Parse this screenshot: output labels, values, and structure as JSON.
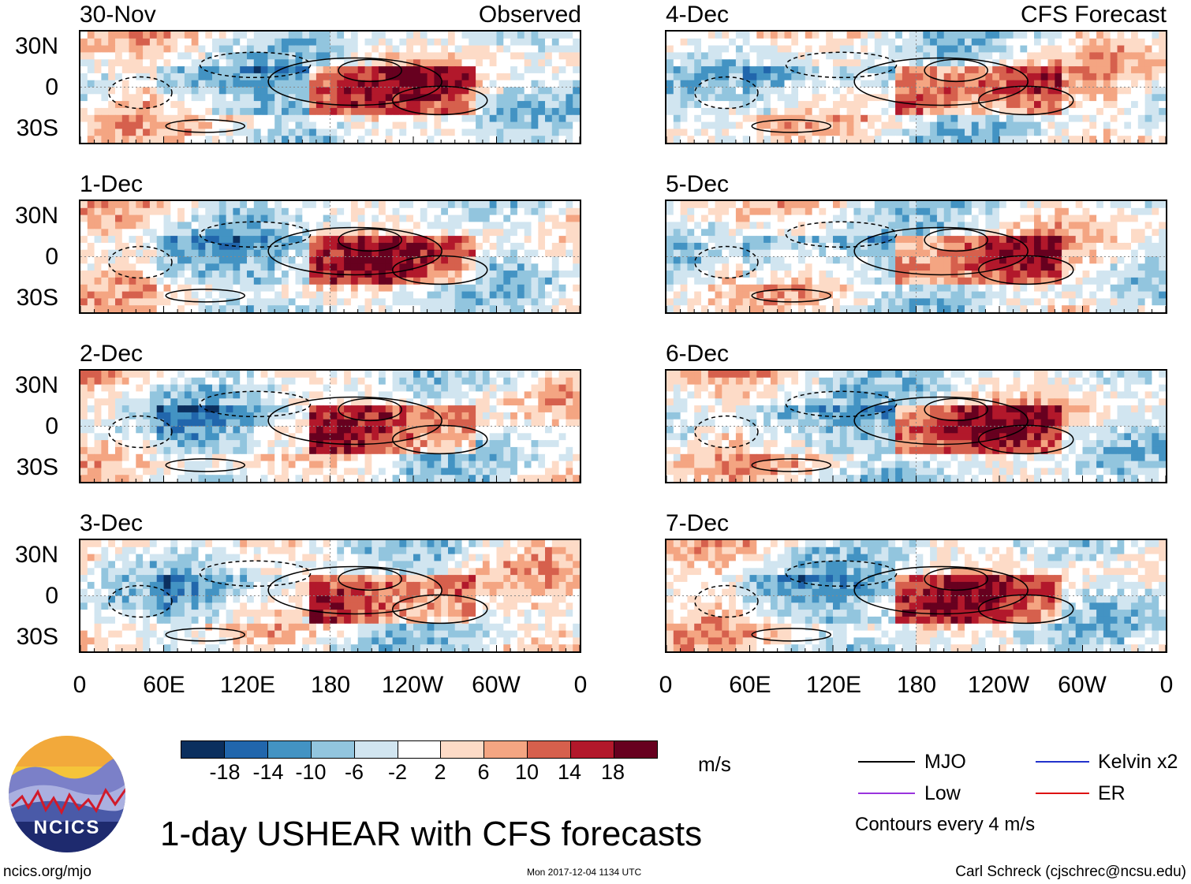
{
  "chart_data": {
    "type": "heatmap",
    "title": "1-day USHEAR with CFS forecasts",
    "units": "m/s",
    "observed_label": "Observed",
    "forecast_label": "CFS Forecast",
    "lat_ticks": [
      "30N",
      "0",
      "30S"
    ],
    "lon_ticks": [
      "0",
      "60E",
      "120E",
      "180",
      "120W",
      "60W",
      "0"
    ],
    "observed_panels": [
      "30-Nov",
      "1-Dec",
      "2-Dec",
      "3-Dec"
    ],
    "forecast_panels": [
      "4-Dec",
      "5-Dec",
      "6-Dec",
      "7-Dec"
    ],
    "colorbar": {
      "ticks": [
        "-18",
        "-14",
        "-10",
        "-6",
        "-2",
        "2",
        "6",
        "10",
        "14",
        "18"
      ],
      "colors": [
        "#0b2f5e",
        "#2166ac",
        "#4393c3",
        "#92c5de",
        "#d1e5f0",
        "#ffffff",
        "#fddbc7",
        "#f4a582",
        "#d6604d",
        "#b2182b",
        "#67001f"
      ]
    },
    "contour_legend": [
      {
        "label": "MJO",
        "color": "#000000"
      },
      {
        "label": "Kelvin x2",
        "color": "#2233cc"
      },
      {
        "label": "Low",
        "color": "#9933dd"
      },
      {
        "label": "ER",
        "color": "#dd1111"
      }
    ],
    "contour_note": "Contours every 4 m/s"
  },
  "footer": {
    "logo_text": "NCICS",
    "url": "ncics.org/mjo",
    "timestamp": "Mon 2017-12-04 1134 UTC",
    "author": "Carl Schreck (cjschrec@ncsu.edu)"
  }
}
